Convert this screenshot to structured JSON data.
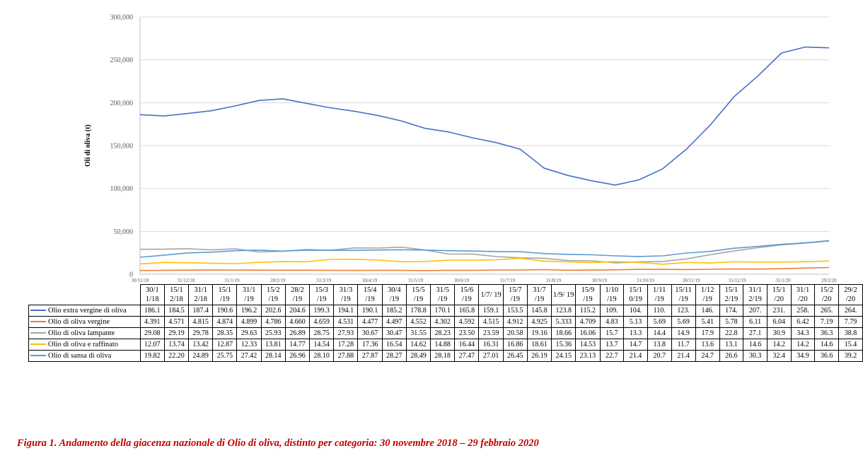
{
  "caption": "Figura 1. Andamento della giacenza nazionale di Olio di oliva, distinto per categoria: 30 novembre 2018 – 29 febbraio 2020",
  "chart_data": {
    "type": "line",
    "ylabel": "Oli di oliva (t)",
    "ylim": [
      0,
      300000
    ],
    "yticks": [
      "0",
      "50,000",
      "100,000",
      "150,000",
      "200,000",
      "250,000",
      "300,000"
    ],
    "x_date_labels": [
      "30/11/18",
      "31/12/18",
      "31/1/19",
      "28/2/19",
      "31/3/19",
      "30/4/19",
      "31/5/19",
      "30/6/19",
      "31/7/19",
      "31/8/19",
      "30/9/19",
      "31/10/19",
      "30/11/19",
      "31/12/19",
      "31/1/20",
      "29/2/20"
    ],
    "categories": [
      "30/11/18",
      "15/12/18",
      "31/12/18",
      "15/1/19",
      "31/1/19",
      "15/2/19",
      "28/2/19",
      "15/3/19",
      "31/3/19",
      "15/4/19",
      "30/4/19",
      "15/5/19",
      "31/5/19",
      "15/6/19",
      "1/7/19",
      "15/7/19",
      "31/7/19",
      "1/9/19",
      "15/9/19",
      "1/10/19",
      "15/10/19",
      "1/11/19",
      "15/11/19",
      "1/12/19",
      "15/12/19",
      "31/12/19",
      "15/1/20",
      "31/1/20",
      "15/2/20",
      "29/2/20"
    ],
    "table_headers": [
      "30/1 1/18",
      "15/1 2/18",
      "31/1 2/18",
      "15/1 /19",
      "31/1 /19",
      "15/2 /19",
      "28/2 /19",
      "15/3 /19",
      "31/3 /19",
      "15/4 /19",
      "30/4 /19",
      "15/5 /19",
      "31/5 /19",
      "15/6 /19",
      "1/7/ 19",
      "15/7 /19",
      "31/7 /19",
      "1/9/ 19",
      "15/9 /19",
      "1/10 /19",
      "15/1 0/19",
      "1/11 /19",
      "15/11 /19",
      "1/12 /19",
      "15/1 2/19",
      "31/1 2/19",
      "15/1 /20",
      "31/1 /20",
      "15/2 /20",
      "29/2 /20"
    ],
    "series": [
      {
        "name": "Olio extra vergine di oliva",
        "color": "#4472c4",
        "labels": [
          "186.1",
          "184.5",
          "187.4",
          "190.6",
          "196.2",
          "202.6",
          "204.6",
          "199.3",
          "194.1",
          "190.1",
          "185.2",
          "178.8",
          "170.1",
          "165.8",
          "159.1",
          "153.5",
          "145.8",
          "123.8",
          "115.2",
          "109.",
          "104.",
          "110.",
          "123.",
          "146.",
          "174.",
          "207.",
          "231.",
          "258.",
          "265.",
          "264."
        ],
        "values": [
          186.1,
          184.5,
          187.4,
          190.6,
          196.2,
          202.6,
          204.6,
          199.3,
          194.1,
          190.1,
          185.2,
          178.8,
          170.1,
          165.8,
          159.1,
          153.5,
          145.8,
          123.8,
          115.2,
          109,
          104,
          110,
          123,
          146,
          174,
          207,
          231,
          258,
          265,
          264
        ]
      },
      {
        "name": "Olio di oliva vergine",
        "color": "#ed7d31",
        "labels": [
          "4.391",
          "4.571",
          "4.815",
          "4.874",
          "4.899",
          "4.786",
          "4.660",
          "4.659",
          "4.531",
          "4.477",
          "4.497",
          "4.552",
          "4.302",
          "4.592",
          "4.515",
          "4.912",
          "4.925",
          "5.333",
          "4.709",
          "4.83",
          "5.13",
          "5.69",
          "5.69",
          "5.41",
          "5.78",
          "6.11",
          "6.04",
          "6.42",
          "7.19",
          "7.79"
        ],
        "values": [
          4.391,
          4.571,
          4.815,
          4.874,
          4.899,
          4.786,
          4.66,
          4.659,
          4.531,
          4.477,
          4.497,
          4.552,
          4.302,
          4.592,
          4.515,
          4.912,
          4.925,
          5.333,
          4.709,
          4.83,
          5.13,
          5.69,
          5.69,
          5.41,
          5.78,
          6.11,
          6.04,
          6.42,
          7.19,
          7.79
        ]
      },
      {
        "name": "Olio di oliva lampante",
        "color": "#a5a5a5",
        "labels": [
          "29.08",
          "29.19",
          "29.78",
          "28.35",
          "29.63",
          "25.93",
          "26.89",
          "28.75",
          "27.93",
          "30.67",
          "30.47",
          "31.55",
          "28.23",
          "23.50",
          "23.59",
          "20.58",
          "19.16",
          "18.66",
          "16.06",
          "15.7",
          "13.3",
          "14.4",
          "14.9",
          "17.9",
          "22.8",
          "27.1",
          "30.9",
          "34.3",
          "36.3",
          "38.8"
        ],
        "values": [
          29.08,
          29.19,
          29.78,
          28.35,
          29.63,
          25.93,
          26.89,
          28.75,
          27.93,
          30.67,
          30.47,
          31.55,
          28.23,
          23.5,
          23.59,
          20.58,
          19.16,
          18.66,
          16.06,
          15.7,
          13.3,
          14.4,
          14.9,
          17.9,
          22.8,
          27.1,
          30.9,
          34.3,
          36.3,
          38.8
        ]
      },
      {
        "name": "Olio di oliva e raffinato",
        "color": "#ffc000",
        "labels": [
          "12.07",
          "13.74",
          "13.42",
          "12.87",
          "12.33",
          "13.81",
          "14.77",
          "14.54",
          "17.28",
          "17.36",
          "16.54",
          "14.62",
          "14.88",
          "16.44",
          "16.31",
          "16.86",
          "18.61",
          "15.36",
          "14.53",
          "13.7",
          "14.7",
          "13.8",
          "11.7",
          "13.6",
          "13.1",
          "14.6",
          "14.2",
          "14.2",
          "14.6",
          "15.4"
        ],
        "values": [
          12.07,
          13.74,
          13.42,
          12.87,
          12.33,
          13.81,
          14.77,
          14.54,
          17.28,
          17.36,
          16.54,
          14.62,
          14.88,
          16.44,
          16.31,
          16.86,
          18.61,
          15.36,
          14.53,
          13.7,
          14.7,
          13.8,
          11.7,
          13.6,
          13.1,
          14.6,
          14.2,
          14.2,
          14.6,
          15.4
        ]
      },
      {
        "name": "Olio di sansa di oliva",
        "color": "#5b9bd5",
        "labels": [
          "19.82",
          "22.20",
          "24.89",
          "25.75",
          "27.42",
          "28.14",
          "26.96",
          "28.10",
          "27.88",
          "27.87",
          "28.27",
          "28.49",
          "28.18",
          "27.47",
          "27.01",
          "26.45",
          "26.19",
          "24.15",
          "23.13",
          "22.7",
          "21.4",
          "20.7",
          "21.4",
          "24.7",
          "26.6",
          "30.3",
          "32.4",
          "34.9",
          "36.6",
          "39.2"
        ],
        "values": [
          19.82,
          22.2,
          24.89,
          25.75,
          27.42,
          28.14,
          26.96,
          28.1,
          27.88,
          27.87,
          28.27,
          28.49,
          28.18,
          27.47,
          27.01,
          26.45,
          26.19,
          24.15,
          23.13,
          22.7,
          21.4,
          20.7,
          21.4,
          24.7,
          26.6,
          30.3,
          32.4,
          34.9,
          36.6,
          39.2
        ]
      }
    ]
  }
}
